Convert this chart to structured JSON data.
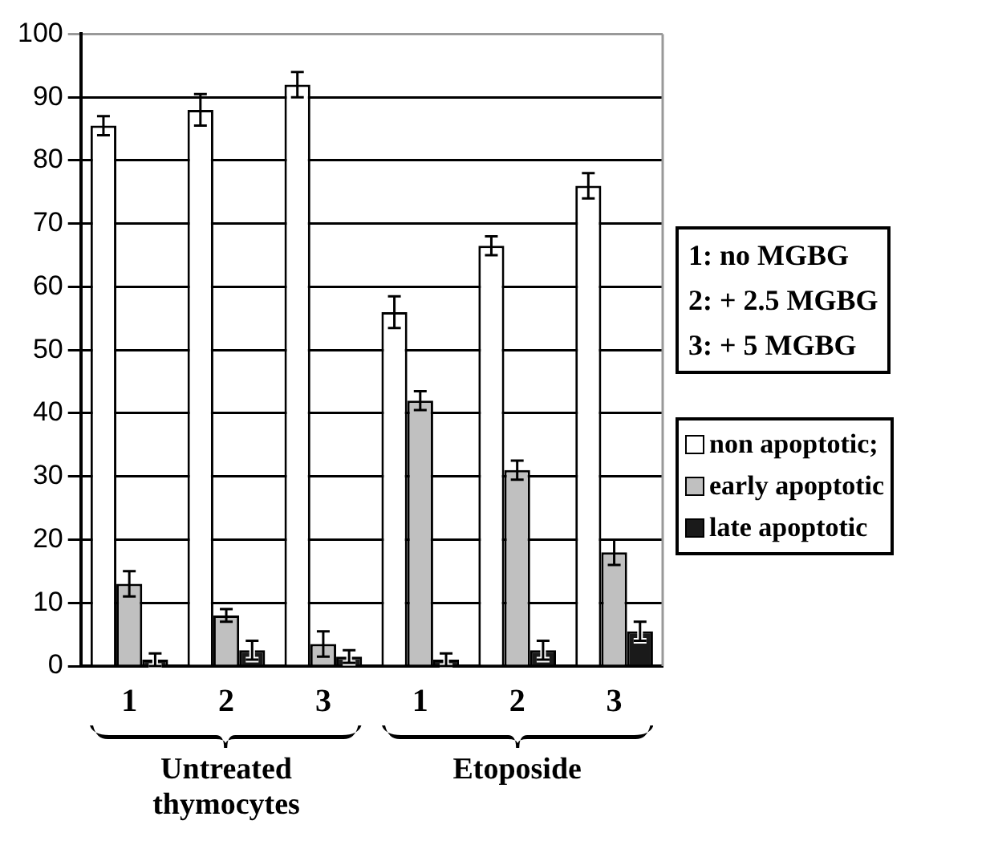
{
  "chart_data": {
    "type": "bar",
    "categories": [
      "1",
      "2",
      "3",
      "1",
      "2",
      "3"
    ],
    "series": [
      {
        "name": "non apoptotic;",
        "color": "#ffffff",
        "values": [
          85.5,
          88,
          92,
          56,
          66.5,
          76
        ],
        "errors": [
          1.5,
          2.5,
          2,
          2.5,
          1.5,
          2
        ]
      },
      {
        "name": "early apoptotic",
        "color": "#c0c0c0",
        "values": [
          13,
          8,
          3.5,
          42,
          31,
          18
        ],
        "errors": [
          2,
          1,
          2,
          1.5,
          1.5,
          2
        ]
      },
      {
        "name": "late apoptotic",
        "color": "#1a1a1a",
        "values": [
          1,
          2.5,
          1.5,
          1,
          2.5,
          5.5
        ],
        "errors": [
          1,
          1.5,
          1,
          1,
          1.5,
          1.5
        ]
      }
    ],
    "ylim": [
      0,
      100
    ],
    "yticks": [
      0,
      10,
      20,
      30,
      40,
      50,
      60,
      70,
      80,
      90,
      100
    ],
    "grid": "y",
    "legend": "right",
    "annotations": [
      "Untreated thymocytes",
      "Etoposide",
      "1: no MGBG",
      "2: + 2.5 MGBG",
      "3: + 5 MGBG"
    ]
  }
}
